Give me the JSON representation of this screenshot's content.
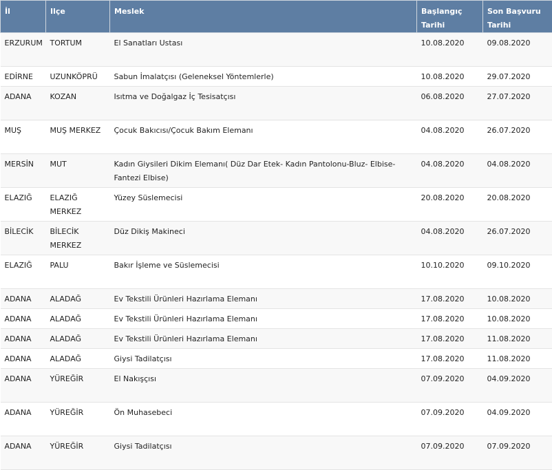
{
  "table": {
    "headers": {
      "il": "İl",
      "ilce": "Ilçe",
      "meslek": "Meslek",
      "baslangic": "Başlangıç Tarihi",
      "son_basvuru": "Son Başvuru Tarihi"
    },
    "rows": [
      {
        "il": "ERZURUM",
        "ilce": "TORTUM",
        "meslek": "El Sanatları Ustası",
        "baslangic": "10.08.2020",
        "son": "09.08.2020"
      },
      {
        "il": "EDİRNE",
        "ilce": "UZUNKÖPRÜ",
        "meslek": "Sabun İmalatçısı (Geleneksel Yöntemlerle)",
        "baslangic": "10.08.2020",
        "son": "29.07.2020"
      },
      {
        "il": "ADANA",
        "ilce": "KOZAN",
        "meslek": "Isıtma ve Doğalgaz İç Tesisatçısı",
        "baslangic": "06.08.2020",
        "son": "27.07.2020"
      },
      {
        "il": "MUŞ",
        "ilce": "MUŞ MERKEZ",
        "meslek": "Çocuk Bakıcısı/Çocuk Bakım Elemanı",
        "baslangic": "04.08.2020",
        "son": "26.07.2020"
      },
      {
        "il": "MERSİN",
        "ilce": "MUT",
        "meslek": "Kadın Giysileri Dikim Elemanı( Düz Dar Etek- Kadın Pantolonu-Bluz- Elbise-Fantezi Elbise)",
        "baslangic": "04.08.2020",
        "son": "04.08.2020"
      },
      {
        "il": "ELAZIĞ",
        "ilce": "ELAZIĞ MERKEZ",
        "meslek": "Yüzey Süslemecisi",
        "baslangic": "20.08.2020",
        "son": "20.08.2020"
      },
      {
        "il": "BİLECİK",
        "ilce": "BİLECİK MERKEZ",
        "meslek": "Düz Dikiş Makineci",
        "baslangic": "04.08.2020",
        "son": "26.07.2020"
      },
      {
        "il": "ELAZIĞ",
        "ilce": "PALU",
        "meslek": "Bakır İşleme ve Süslemecisi",
        "baslangic": "10.10.2020",
        "son": "09.10.2020"
      },
      {
        "il": "ADANA",
        "ilce": "ALADAĞ",
        "meslek": "Ev Tekstili Ürünleri Hazırlama Elemanı",
        "baslangic": "17.08.2020",
        "son": "10.08.2020"
      },
      {
        "il": "ADANA",
        "ilce": "ALADAĞ",
        "meslek": "Ev Tekstili Ürünleri Hazırlama Elemanı",
        "baslangic": "17.08.2020",
        "son": "10.08.2020"
      },
      {
        "il": "ADANA",
        "ilce": "ALADAĞ",
        "meslek": "Ev Tekstili Ürünleri Hazırlama Elemanı",
        "baslangic": "17.08.2020",
        "son": "11.08.2020"
      },
      {
        "il": "ADANA",
        "ilce": "ALADAĞ",
        "meslek": "Giysi Tadilatçısı",
        "baslangic": "17.08.2020",
        "son": "11.08.2020"
      },
      {
        "il": "ADANA",
        "ilce": "YÜREĞİR",
        "meslek": "El Nakışçısı",
        "baslangic": "07.09.2020",
        "son": "04.09.2020"
      },
      {
        "il": "ADANA",
        "ilce": "YÜREĞİR",
        "meslek": "Ön Muhasebeci",
        "baslangic": "07.09.2020",
        "son": "04.09.2020"
      },
      {
        "il": "ADANA",
        "ilce": "YÜREĞİR",
        "meslek": "Giysi Tadilatçısı",
        "baslangic": "07.09.2020",
        "son": "07.09.2020"
      }
    ]
  }
}
